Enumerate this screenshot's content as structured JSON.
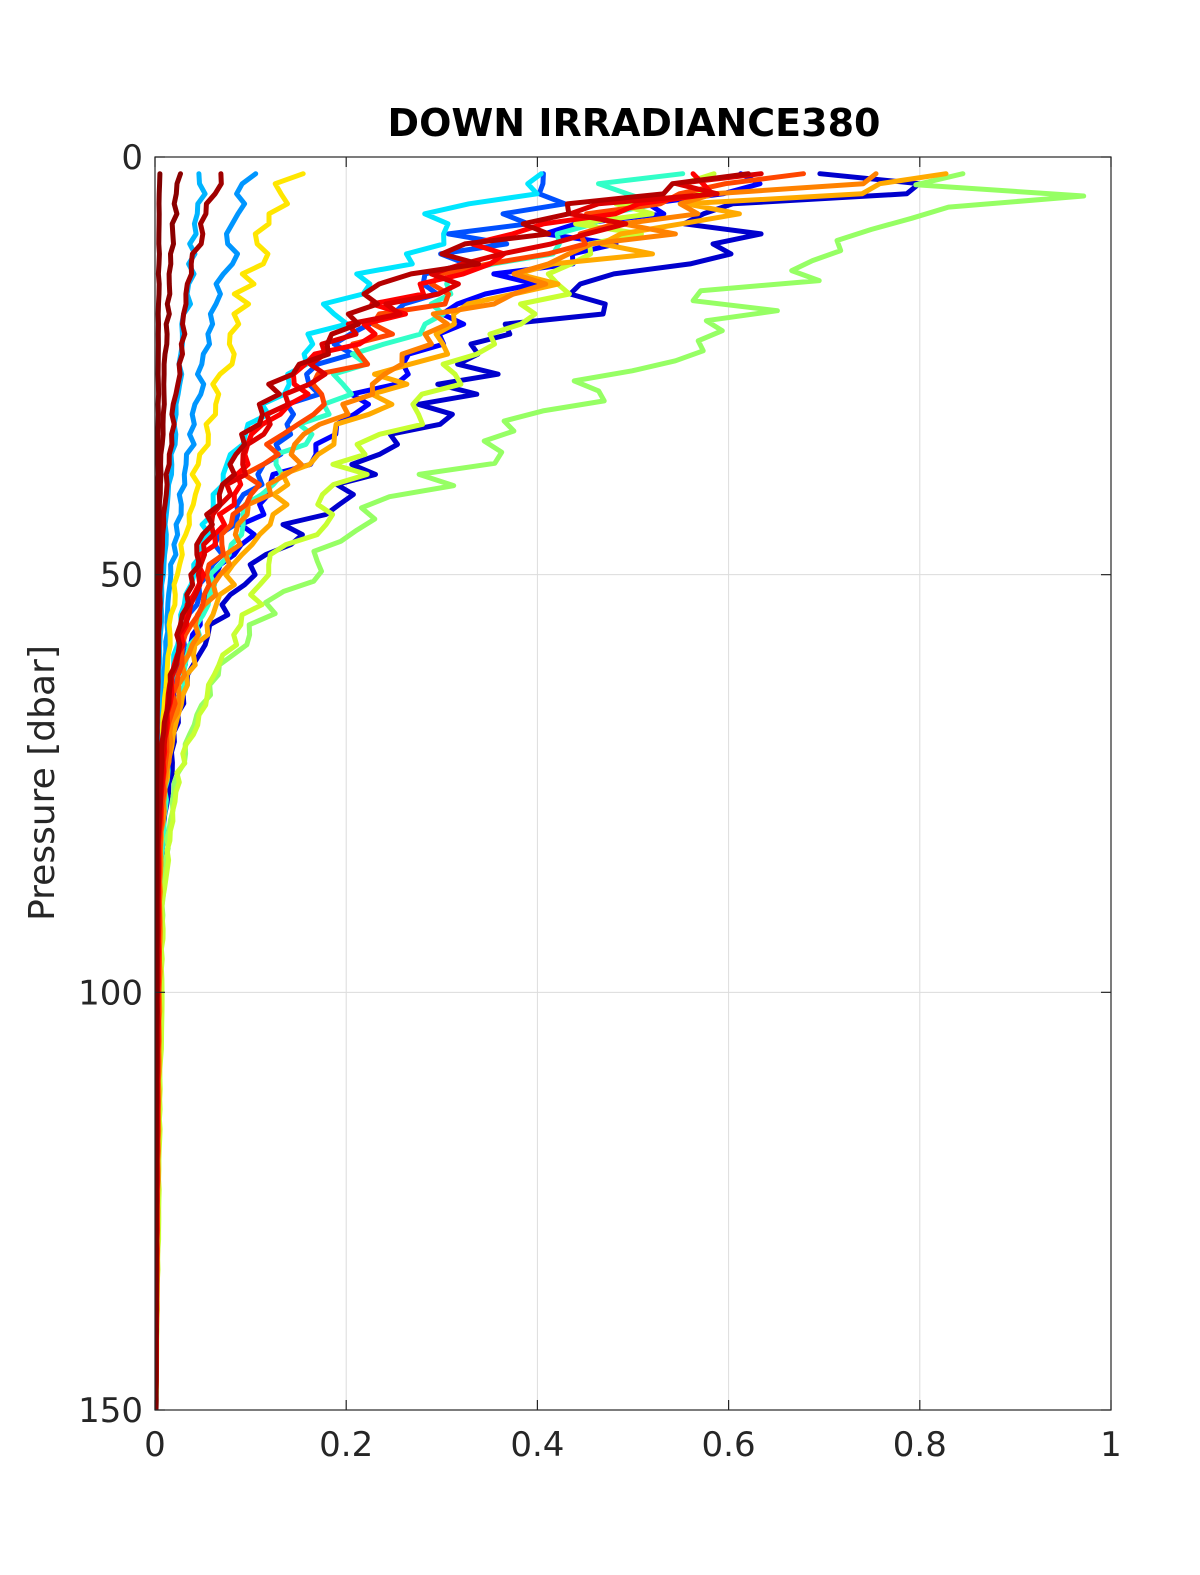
{
  "chart_data": {
    "type": "line",
    "title": "DOWN IRRADIANCE380",
    "xlabel": "",
    "ylabel": "Pressure [dbar]",
    "xlim": [
      0,
      1
    ],
    "ylim": [
      0,
      150
    ],
    "y_reversed": true,
    "grid": true,
    "x_ticks": [
      "0",
      "0.2",
      "0.4",
      "0.6",
      "0.8",
      "1"
    ],
    "y_ticks": [
      "0",
      "50",
      "100",
      "150"
    ],
    "colormap": "jet",
    "series": [
      {
        "color": "#0000cd",
        "surface_value": 0.77,
        "decay_scale": 13,
        "x": [
          0.77,
          0.62,
          0.5,
          0.4,
          0.33,
          0.27,
          0.21,
          0.15,
          0.1,
          0.06,
          0.035,
          0.02,
          0.01,
          0.005,
          0.002,
          0.001
        ],
        "y": [
          2,
          8,
          14,
          20,
          26,
          32,
          38,
          44,
          50,
          56,
          62,
          70,
          80,
          90,
          100,
          150
        ]
      },
      {
        "color": "#0000ff",
        "surface_value": 0.62,
        "decay_scale": 12,
        "x": [
          0.62,
          0.48,
          0.38,
          0.3,
          0.24,
          0.19,
          0.14,
          0.1,
          0.07,
          0.045,
          0.025,
          0.012,
          0.006,
          0.003,
          0.001
        ],
        "y": [
          2,
          8,
          14,
          20,
          26,
          32,
          38,
          44,
          50,
          56,
          62,
          70,
          80,
          90,
          150
        ]
      },
      {
        "color": "#0050ff",
        "surface_value": 0.45,
        "decay_scale": 14,
        "x": [
          0.45,
          0.36,
          0.29,
          0.23,
          0.18,
          0.14,
          0.11,
          0.08,
          0.055,
          0.035,
          0.02,
          0.01,
          0.004,
          0.001
        ],
        "y": [
          2,
          8,
          14,
          20,
          26,
          32,
          38,
          44,
          50,
          56,
          62,
          70,
          85,
          150
        ]
      },
      {
        "color": "#0096ff",
        "surface_value": 0.1,
        "decay_scale": 25,
        "x": [
          0.1,
          0.085,
          0.072,
          0.06,
          0.05,
          0.04,
          0.032,
          0.024,
          0.017,
          0.011,
          0.006,
          0.003,
          0.001
        ],
        "y": [
          2,
          8,
          14,
          20,
          26,
          32,
          38,
          44,
          50,
          58,
          68,
          85,
          150
        ]
      },
      {
        "color": "#00b4ff",
        "surface_value": 0.05,
        "decay_scale": 28,
        "x": [
          0.05,
          0.043,
          0.037,
          0.031,
          0.026,
          0.021,
          0.016,
          0.012,
          0.008,
          0.005,
          0.002,
          0.001
        ],
        "y": [
          2,
          8,
          14,
          20,
          26,
          32,
          38,
          44,
          50,
          60,
          75,
          150
        ]
      },
      {
        "color": "#00e6ff",
        "surface_value": 0.4,
        "decay_scale": 11,
        "x": [
          0.4,
          0.3,
          0.23,
          0.18,
          0.14,
          0.1,
          0.075,
          0.055,
          0.04,
          0.028,
          0.018,
          0.01,
          0.004,
          0.001
        ],
        "y": [
          2,
          8,
          14,
          20,
          26,
          32,
          38,
          44,
          50,
          56,
          62,
          70,
          85,
          150
        ]
      },
      {
        "color": "#32ffc8",
        "surface_value": 0.55,
        "decay_scale": 12,
        "x": [
          0.55,
          0.43,
          0.34,
          0.27,
          0.21,
          0.16,
          0.12,
          0.09,
          0.065,
          0.045,
          0.03,
          0.015,
          0.006,
          0.001
        ],
        "y": [
          2,
          8,
          14,
          20,
          26,
          32,
          38,
          44,
          50,
          56,
          62,
          70,
          85,
          150
        ]
      },
      {
        "color": "#96ff64",
        "surface_value": 0.83,
        "decay_scale": 22,
        "x": [
          0.83,
          0.9,
          0.75,
          0.63,
          0.55,
          0.45,
          0.38,
          0.3,
          0.24,
          0.2,
          0.14,
          0.1,
          0.065,
          0.04,
          0.02,
          0.01,
          0.004,
          0.001
        ],
        "y": [
          2,
          6,
          10,
          16,
          22,
          28,
          34,
          38,
          42,
          46,
          52,
          56,
          62,
          68,
          76,
          85,
          100,
          150
        ]
      },
      {
        "color": "#c8ff32",
        "surface_value": 0.6,
        "decay_scale": 16,
        "x": [
          0.6,
          0.5,
          0.42,
          0.35,
          0.3,
          0.25,
          0.2,
          0.16,
          0.12,
          0.09,
          0.06,
          0.04,
          0.02,
          0.008,
          0.001
        ],
        "y": [
          2,
          8,
          14,
          20,
          26,
          32,
          38,
          44,
          50,
          56,
          62,
          68,
          76,
          90,
          150
        ]
      },
      {
        "color": "#ffe600",
        "surface_value": 0.14,
        "decay_scale": 20,
        "x": [
          0.14,
          0.12,
          0.1,
          0.084,
          0.07,
          0.056,
          0.044,
          0.033,
          0.024,
          0.016,
          0.009,
          0.004,
          0.001
        ],
        "y": [
          2,
          8,
          14,
          20,
          26,
          32,
          38,
          44,
          50,
          56,
          66,
          80,
          150
        ]
      },
      {
        "color": "#ffaa00",
        "surface_value": 0.74,
        "decay_scale": 14,
        "x": [
          0.74,
          0.55,
          0.42,
          0.33,
          0.26,
          0.2,
          0.15,
          0.11,
          0.08,
          0.055,
          0.035,
          0.02,
          0.008,
          0.002,
          0.001
        ],
        "y": [
          2,
          8,
          14,
          20,
          26,
          32,
          38,
          44,
          50,
          56,
          62,
          68,
          78,
          92,
          150
        ]
      },
      {
        "color": "#ff8200",
        "surface_value": 0.72,
        "decay_scale": 12,
        "x": [
          0.72,
          0.52,
          0.4,
          0.3,
          0.23,
          0.18,
          0.13,
          0.095,
          0.068,
          0.046,
          0.028,
          0.015,
          0.006,
          0.001
        ],
        "y": [
          2,
          8,
          14,
          20,
          26,
          32,
          38,
          44,
          50,
          56,
          62,
          70,
          82,
          150
        ]
      },
      {
        "color": "#ff4600",
        "surface_value": 0.63,
        "decay_scale": 11,
        "x": [
          0.63,
          0.45,
          0.33,
          0.25,
          0.19,
          0.14,
          0.105,
          0.078,
          0.056,
          0.038,
          0.024,
          0.012,
          0.005,
          0.001
        ],
        "y": [
          2,
          8,
          14,
          20,
          26,
          32,
          38,
          44,
          50,
          56,
          62,
          70,
          82,
          150
        ]
      },
      {
        "color": "#ff0000",
        "surface_value": 0.6,
        "decay_scale": 10,
        "x": [
          0.6,
          0.42,
          0.3,
          0.22,
          0.16,
          0.12,
          0.09,
          0.065,
          0.046,
          0.032,
          0.02,
          0.01,
          0.004,
          0.001
        ],
        "y": [
          2,
          8,
          14,
          20,
          26,
          32,
          38,
          44,
          50,
          56,
          62,
          70,
          82,
          150
        ]
      },
      {
        "color": "#dc0000",
        "surface_value": 0.65,
        "decay_scale": 10,
        "x": [
          0.65,
          0.44,
          0.31,
          0.22,
          0.16,
          0.115,
          0.085,
          0.062,
          0.045,
          0.03,
          0.018,
          0.009,
          0.003,
          0.001
        ],
        "y": [
          2,
          8,
          14,
          20,
          26,
          32,
          38,
          44,
          50,
          56,
          62,
          70,
          82,
          150
        ]
      },
      {
        "color": "#b40000",
        "surface_value": 0.6,
        "decay_scale": 9,
        "x": [
          0.6,
          0.4,
          0.28,
          0.2,
          0.14,
          0.1,
          0.075,
          0.055,
          0.04,
          0.028,
          0.017,
          0.008,
          0.003,
          0.001
        ],
        "y": [
          2,
          8,
          14,
          20,
          26,
          32,
          38,
          44,
          50,
          56,
          62,
          70,
          82,
          150
        ]
      },
      {
        "color": "#a00000",
        "surface_value": 0.065,
        "decay_scale": 16,
        "x": [
          0.065,
          0.05,
          0.04,
          0.031,
          0.024,
          0.018,
          0.013,
          0.009,
          0.006,
          0.004,
          0.002,
          0.001
        ],
        "y": [
          2,
          8,
          14,
          20,
          26,
          32,
          38,
          44,
          50,
          58,
          70,
          150
        ]
      },
      {
        "color": "#8b0000",
        "surface_value": 0.025,
        "decay_scale": 20,
        "x": [
          0.025,
          0.02,
          0.016,
          0.013,
          0.01,
          0.008,
          0.006,
          0.004,
          0.003,
          0.002,
          0.001
        ],
        "y": [
          2,
          8,
          14,
          20,
          26,
          32,
          38,
          46,
          56,
          70,
          150
        ]
      },
      {
        "color": "#800000",
        "surface_value": 0.005,
        "decay_scale": 40,
        "x": [
          0.005,
          0.004,
          0.0035,
          0.003,
          0.0025,
          0.002,
          0.0015,
          0.001,
          0.001
        ],
        "y": [
          2,
          14,
          26,
          38,
          50,
          62,
          80,
          100,
          150
        ]
      }
    ]
  }
}
